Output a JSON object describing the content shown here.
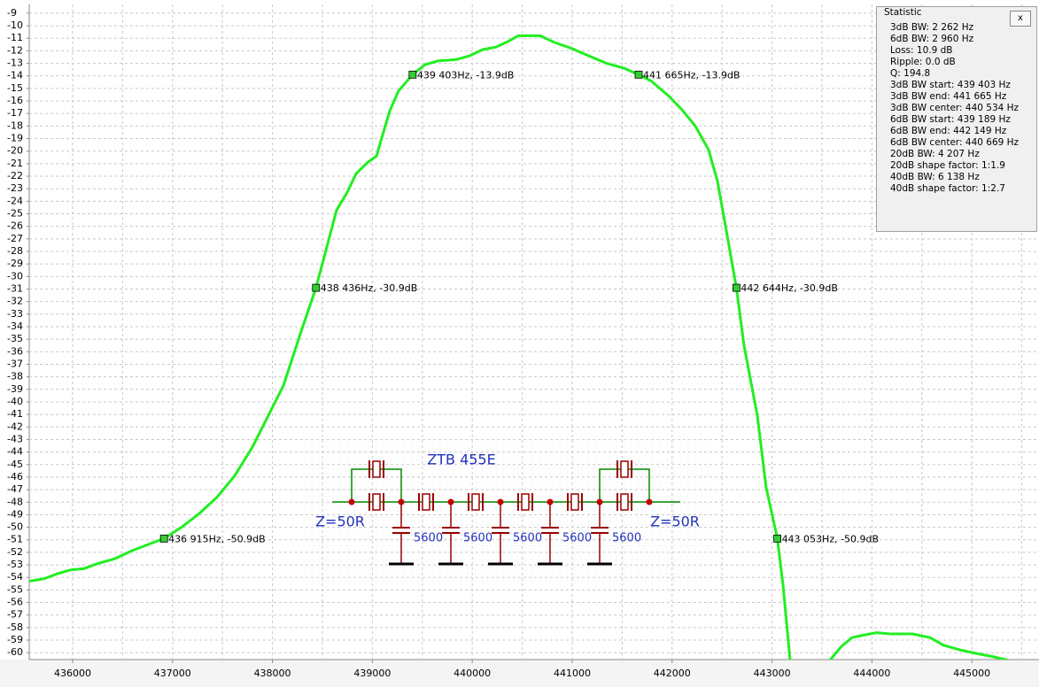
{
  "chart_data": {
    "type": "line",
    "xlim": [
      435566,
      445672
    ],
    "ylim": [
      -60.55,
      -8.3
    ],
    "xticks": [
      436000,
      437000,
      438000,
      439000,
      440000,
      441000,
      442000,
      443000,
      444000,
      445000
    ],
    "x_minor_grid": [
      435500,
      436500,
      437500,
      438500,
      439500,
      440500,
      441500,
      442500,
      443500,
      444500,
      445500
    ],
    "yticks": [
      -9,
      -10,
      -11,
      -12,
      -13,
      -14,
      -15,
      -16,
      -17,
      -18,
      -19,
      -20,
      -21,
      -22,
      -23,
      -24,
      -25,
      -26,
      -27,
      -28,
      -29,
      -30,
      -31,
      -32,
      -33,
      -34,
      -35,
      -36,
      -37,
      -38,
      -39,
      -40,
      -41,
      -42,
      -43,
      -44,
      -45,
      -46,
      -47,
      -48,
      -49,
      -50,
      -51,
      -52,
      -53,
      -54,
      -55,
      -56,
      -57,
      -58,
      -59,
      -60
    ],
    "grid": true,
    "series": [
      {
        "color": "#22ee22",
        "x": [
          435566,
          435716,
          435849,
          435982,
          436115,
          436248,
          436426,
          436585,
          436780,
          436915,
          437090,
          437268,
          437445,
          437622,
          437800,
          437933,
          438110,
          438287,
          438436,
          438553,
          438642,
          438748,
          438837,
          438952,
          439041,
          439103,
          439174,
          439262,
          439403,
          439528,
          439661,
          439839,
          439972,
          440105,
          440237,
          440371,
          440459,
          440592,
          440681,
          440814,
          440991,
          441168,
          441346,
          441523,
          441665,
          441789,
          441966,
          442099,
          442232,
          442365,
          442454,
          442542,
          442644,
          442720,
          442853,
          442941,
          443053,
          443110,
          443181,
          443400,
          443580,
          443695,
          443801,
          443916,
          444049,
          444182,
          444404,
          444581,
          444714,
          444891,
          445068,
          445202,
          445361
        ],
        "values": [
          -54.3,
          -54.1,
          -53.7,
          -53.4,
          -53.3,
          -52.9,
          -52.5,
          -51.9,
          -51.3,
          -50.9,
          -50.0,
          -48.9,
          -47.6,
          -45.9,
          -43.6,
          -41.5,
          -38.7,
          -34.4,
          -30.9,
          -27.4,
          -24.7,
          -23.3,
          -21.8,
          -20.9,
          -20.4,
          -18.7,
          -16.8,
          -15.2,
          -13.9,
          -13.1,
          -12.8,
          -12.7,
          -12.4,
          -11.9,
          -11.7,
          -11.2,
          -10.8,
          -10.8,
          -10.8,
          -11.3,
          -11.8,
          -12.4,
          -13.0,
          -13.4,
          -13.9,
          -14.4,
          -15.6,
          -16.7,
          -18.0,
          -19.9,
          -22.4,
          -26.3,
          -30.9,
          -35.5,
          -41.1,
          -46.8,
          -50.9,
          -54.6,
          -60.6,
          null,
          -60.6,
          -59.5,
          -58.8,
          -58.6,
          -58.4,
          -58.5,
          -58.5,
          -58.8,
          -59.4,
          -59.8,
          -60.1,
          -60.3,
          -60.6
        ]
      }
    ],
    "markers": [
      {
        "x": 436915,
        "y": -50.9,
        "label": "436 915Hz, -50.9dB"
      },
      {
        "x": 438436,
        "y": -30.9,
        "label": "438 436Hz, -30.9dB"
      },
      {
        "x": 439403,
        "y": -13.9,
        "label": "439 403Hz, -13.9dB"
      },
      {
        "x": 441665,
        "y": -13.9,
        "label": "441 665Hz, -13.9dB"
      },
      {
        "x": 442644,
        "y": -30.9,
        "label": "442 644Hz, -30.9dB"
      },
      {
        "x": 443053,
        "y": -50.9,
        "label": "443 053Hz, -50.9dB"
      }
    ]
  },
  "statistic": {
    "title": "Statistic",
    "close": "x",
    "lines": [
      "3dB BW: 2 262 Hz",
      "6dB BW: 2 960 Hz",
      "Loss: 10.9 dB",
      "Ripple: 0.0 dB",
      "Q: 194.8",
      "3dB BW start: 439 403 Hz",
      "3dB BW end: 441 665 Hz",
      "3dB BW center: 440 534 Hz",
      "6dB BW start: 439 189 Hz",
      "6dB BW end: 442 149 Hz",
      "6dB BW center: 440 669 Hz",
      "20dB BW: 4 207 Hz",
      "20dB shape factor: 1:1.9",
      "40dB BW: 6 138 Hz",
      "40dB shape factor: 1:2.7"
    ]
  },
  "schematic": {
    "title": "ZTB 455E",
    "z_in": "Z=50R",
    "z_out": "Z=50R",
    "capacitors": [
      "5600",
      "5600",
      "5600",
      "5600",
      "5600"
    ]
  }
}
